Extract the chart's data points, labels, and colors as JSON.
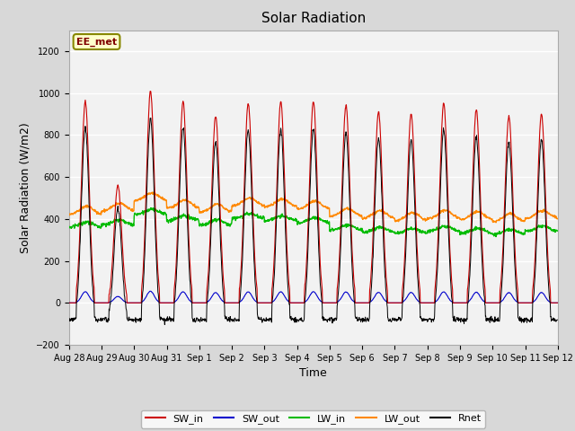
{
  "title": "Solar Radiation",
  "xlabel": "Time",
  "ylabel": "Solar Radiation (W/m2)",
  "ylim": [
    -200,
    1300
  ],
  "yticks": [
    -200,
    0,
    200,
    400,
    600,
    800,
    1000,
    1200
  ],
  "x_tick_labels": [
    "Aug 28",
    "Aug 29",
    "Aug 30",
    "Aug 31",
    "Sep 1",
    "Sep 2",
    "Sep 3",
    "Sep 4",
    "Sep 5",
    "Sep 6",
    "Sep 7",
    "Sep 8",
    "Sep 9",
    "Sep 10",
    "Sep 11",
    "Sep 12"
  ],
  "num_days": 15,
  "dt_hours": 0.25,
  "SW_in_peak": [
    960,
    560,
    1010,
    960,
    890,
    950,
    960,
    960,
    940,
    910,
    900,
    950,
    920,
    890,
    900
  ],
  "LW_in_base": [
    360,
    370,
    420,
    390,
    370,
    400,
    390,
    380,
    345,
    335,
    330,
    340,
    330,
    325,
    340
  ],
  "LW_out_base": [
    420,
    435,
    485,
    450,
    430,
    460,
    455,
    445,
    410,
    400,
    390,
    400,
    395,
    385,
    400
  ],
  "Rnet_night": -80,
  "background_color": "#d8d8d8",
  "plot_bg_color": "#f2f2f2",
  "grid_color": "#ffffff",
  "colors": {
    "SW_in": "#cc0000",
    "SW_out": "#0000cc",
    "LW_in": "#00bb00",
    "LW_out": "#ff8800",
    "Rnet": "#000000"
  },
  "annotation_text": "EE_met",
  "annotation_color": "#800000",
  "annotation_bg": "#ffffcc",
  "annotation_border": "#888800"
}
